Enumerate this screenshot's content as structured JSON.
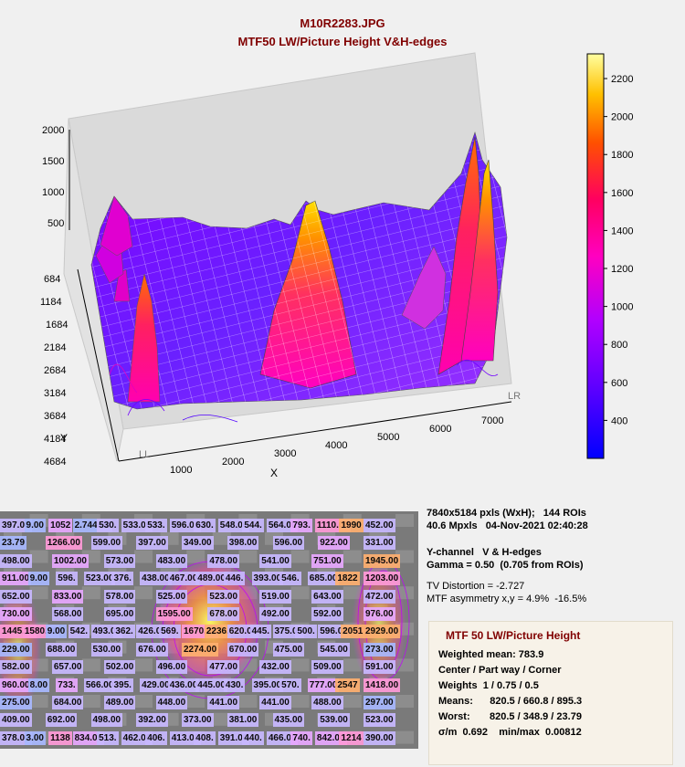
{
  "title": "M10R2283.JPG",
  "subtitle": "MTF50 LW/Picture Height   V&H-edges",
  "chart_data": {
    "type": "surface3d",
    "title": "M10R2283.JPG",
    "subtitle": "MTF50 LW/Picture Height   V&H-edges",
    "xlabel": "X",
    "ylabel": "Y",
    "x_ticks": [
      1000,
      2000,
      3000,
      4000,
      5000,
      6000,
      7000
    ],
    "y_ticks": [
      684,
      1184,
      1684,
      2184,
      2684,
      3184,
      3684,
      4184,
      4684
    ],
    "z_ticks": [
      500,
      1000,
      1500,
      2000
    ],
    "xlim": [
      0,
      7840
    ],
    "ylim": [
      0,
      5184
    ],
    "zlim": [
      0,
      2300
    ],
    "corner_labels": [
      "LL",
      "LR"
    ],
    "colorbar_ticks": [
      400,
      600,
      800,
      1000,
      1200,
      1400,
      1600,
      1800,
      2000,
      2200
    ],
    "colorbar_range": [
      200,
      2330
    ],
    "colormap": [
      "#0000ff",
      "#8000ff",
      "#c000ff",
      "#ff00c0",
      "#ff0060",
      "#ff6000",
      "#ffc000",
      "#ffff80"
    ],
    "grid": true
  },
  "roi_labels": {
    "row1": [
      "397.00",
      "9.00",
      "1052",
      "2.744.00",
      "530.",
      "533.00",
      "533.",
      "596.00",
      "630.",
      "548.00",
      "544.",
      "564.00",
      "793.",
      "1110.00",
      "1990",
      "452.00"
    ],
    "row2": [
      "23.79",
      "1266.00",
      "599.00",
      "397.00",
      "349.00",
      "398.00",
      "596.00",
      "922.00",
      "331.00"
    ],
    "row3": [
      "498.00",
      "1002.00",
      "573.00",
      "483.00",
      "478.00",
      "541.00",
      "751.00",
      "1945.00"
    ],
    "row4": [
      "911.00",
      "9.00",
      "596.",
      "523.00",
      "376.",
      "438.00",
      "467.00",
      "489.00",
      "446.",
      "393.00",
      "546.",
      "685.00",
      "1822",
      "1203.00"
    ],
    "row5": [
      "652.00",
      "833.00",
      "578.00",
      "525.00",
      "523.00",
      "519.00",
      "643.00",
      "472.00"
    ],
    "row6": [
      "730.00",
      "568.00",
      "695.00",
      "1595.00",
      "678.00",
      "492.00",
      "592.00",
      "976.00"
    ],
    "row7": [
      "1445.00",
      "1580.00",
      "9.00",
      "542.",
      "493.00",
      "362.",
      "426.00",
      "569.",
      "1670.00",
      "2236.",
      "620.00",
      "445.",
      "375.00",
      "500.",
      "596.00",
      "2051",
      "2929.00"
    ],
    "row8": [
      "229.00",
      "688.00",
      "530.00",
      "676.00",
      "2274.00",
      "670.00",
      "475.00",
      "545.00",
      "273.00"
    ],
    "row9": [
      "582.00",
      "657.00",
      "502.00",
      "496.00",
      "477.00",
      "432.00",
      "509.00",
      "591.00"
    ],
    "row10": [
      "960.00",
      "8.00",
      "733.",
      "566.00",
      "395.",
      "429.00",
      "436.00",
      "445.00",
      "430.",
      "395.00",
      "570.",
      "777.00",
      "2547",
      "1418.00"
    ],
    "row11": [
      "275.00",
      "684.00",
      "489.00",
      "448.00",
      "441.00",
      "441.00",
      "488.00",
      "297.00"
    ],
    "row12": [
      "409.00",
      "692.00",
      "498.00",
      "392.00",
      "373.00",
      "381.00",
      "435.00",
      "539.00",
      "523.00"
    ],
    "row13": [
      "378.00",
      "3.00",
      "1138",
      "834.00",
      "513.",
      "462.00",
      "406.",
      "413.00",
      "408.",
      "391.00",
      "440.",
      "466.00",
      "740.",
      "842.00",
      "1214",
      "390.00"
    ]
  },
  "info": {
    "line1": "7840x5184 pxls (WxH);   144 ROIs",
    "line2": "40.6 Mpxls   04-Nov-2021 02:40:28",
    "line3": "Y-channel   V & H-edges",
    "line4": "Gamma = 0.50  (0.705 from ROIs)",
    "line5": "TV Distortion = -2.727",
    "line6": "MTF asymmetry x,y = 4.9%  -16.5%"
  },
  "summary": {
    "title": "MTF 50 LW/Picture Height",
    "weighted_mean": "Weighted mean: 783.9",
    "center": "Center / Part way / Corner",
    "weights": "Weights  1 / 0.75 / 0.5",
    "means": "Means:      820.5 / 660.8 / 895.3",
    "worst": "Worst:       820.5 / 348.9 / 23.79",
    "sigma": "σ/m  0.692    min/max  0.00812"
  }
}
